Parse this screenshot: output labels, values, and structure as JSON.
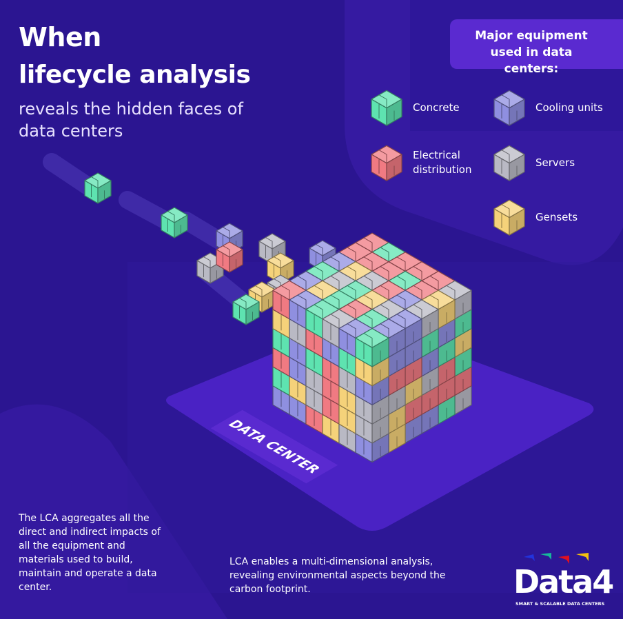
{
  "header": {
    "title_line1": "When",
    "title_line2": "lifecycle analysis",
    "subtitle": "reveals the hidden faces of data centers"
  },
  "legend": {
    "heading": "Major equipment used in data centers:",
    "items": [
      {
        "label": "Concrete",
        "color": "#5ee3b0"
      },
      {
        "label": "Cooling units",
        "color": "#8f8fe0"
      },
      {
        "label": "Electrical distribution",
        "color": "#f07a82"
      },
      {
        "label": "Servers",
        "color": "#b9b9c4"
      },
      {
        "label": "Gensets",
        "color": "#f5d27a"
      }
    ]
  },
  "platform_label": "DATA CENTER",
  "notes": {
    "left": "The LCA aggregates all the direct and indirect impacts of all the equipment and materials used to build, maintain and operate a data center.",
    "middle": "LCA enables a multi-dimensional analysis, revealing environmental aspects beyond the carbon footprint."
  },
  "logo": {
    "word": "Data4",
    "tagline": "SMART & SCALABLE DATA CENTERS"
  },
  "colors": {
    "background": "#2b1591",
    "accent": "#5a2ad0"
  }
}
